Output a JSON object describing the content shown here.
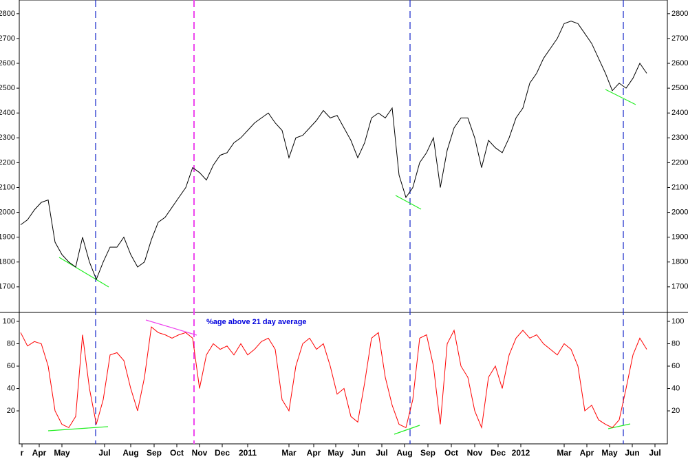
{
  "chart_data": [
    {
      "type": "line",
      "color": "#000000",
      "values": [
        1950,
        1970,
        2010,
        2040,
        2050,
        1880,
        1830,
        1800,
        1780,
        1900,
        1800,
        1730,
        1800,
        1860,
        1860,
        1900,
        1830,
        1780,
        1800,
        1890,
        1960,
        1980,
        2020,
        2060,
        2100,
        2180,
        2160,
        2130,
        2190,
        2230,
        2240,
        2280,
        2300,
        2330,
        2360,
        2380,
        2400,
        2360,
        2330,
        2220,
        2300,
        2310,
        2340,
        2370,
        2410,
        2380,
        2390,
        2340,
        2290,
        2220,
        2280,
        2380,
        2400,
        2380,
        2420,
        2150,
        2060,
        2100,
        2200,
        2240,
        2300,
        2100,
        2250,
        2340,
        2380,
        2380,
        2300,
        2180,
        2290,
        2260,
        2240,
        2300,
        2380,
        2420,
        2520,
        2560,
        2620,
        2660,
        2700,
        2760,
        2770,
        2760,
        2720,
        2680,
        2620,
        2560,
        2490,
        2520,
        2500,
        2540,
        2600,
        2560
      ],
      "xlim": [
        -0.2,
        94
      ],
      "ylim": [
        1597,
        2855
      ],
      "yticks": [
        1700,
        1800,
        1900,
        2000,
        2100,
        2200,
        2300,
        2400,
        2500,
        2600,
        2700,
        2800
      ]
    },
    {
      "type": "line",
      "color": "#ff0000",
      "annotation": "%age above 21 day average",
      "values": [
        90,
        78,
        82,
        80,
        60,
        20,
        8,
        5,
        15,
        88,
        40,
        8,
        30,
        70,
        72,
        65,
        40,
        20,
        50,
        95,
        90,
        88,
        85,
        88,
        90,
        85,
        40,
        70,
        80,
        75,
        78,
        70,
        80,
        70,
        75,
        82,
        85,
        75,
        30,
        20,
        60,
        80,
        85,
        75,
        80,
        60,
        35,
        40,
        15,
        10,
        45,
        85,
        90,
        50,
        25,
        8,
        5,
        30,
        85,
        88,
        60,
        8,
        80,
        92,
        60,
        50,
        20,
        5,
        50,
        60,
        40,
        70,
        85,
        92,
        85,
        88,
        80,
        75,
        70,
        80,
        75,
        60,
        20,
        25,
        12,
        8,
        5,
        12,
        40,
        70,
        85,
        75
      ],
      "xlim": [
        -0.2,
        94
      ],
      "ylim": [
        -9.5,
        108
      ],
      "yticks": [
        20,
        40,
        60,
        80,
        100
      ],
      "xticks": [
        {
          "value": 0.2,
          "label": "r"
        },
        {
          "value": 2.7,
          "label": "Apr"
        },
        {
          "value": 6,
          "label": "May"
        },
        {
          "value": 12.2,
          "label": "Jul"
        },
        {
          "value": 16,
          "label": "Aug"
        },
        {
          "value": 19.4,
          "label": "Sep"
        },
        {
          "value": 22.7,
          "label": "Oct"
        },
        {
          "value": 26,
          "label": "Nov"
        },
        {
          "value": 29.3,
          "label": "Dec"
        },
        {
          "value": 33,
          "label": "2011"
        },
        {
          "value": 39,
          "label": "Mar"
        },
        {
          "value": 42.6,
          "label": "Apr"
        },
        {
          "value": 45.8,
          "label": "May"
        },
        {
          "value": 49.1,
          "label": "Jun"
        },
        {
          "value": 52.5,
          "label": "Jul"
        },
        {
          "value": 55.8,
          "label": "Aug"
        },
        {
          "value": 59.2,
          "label": "Sep"
        },
        {
          "value": 62.6,
          "label": "Oct"
        },
        {
          "value": 66,
          "label": "Nov"
        },
        {
          "value": 69.4,
          "label": "Dec"
        },
        {
          "value": 72.7,
          "label": "2012"
        },
        {
          "value": 79,
          "label": "Mar"
        },
        {
          "value": 82.3,
          "label": "Apr"
        },
        {
          "value": 85.6,
          "label": "May"
        },
        {
          "value": 88.9,
          "label": "Jun"
        },
        {
          "value": 92.2,
          "label": "Jul"
        }
      ]
    }
  ]
}
